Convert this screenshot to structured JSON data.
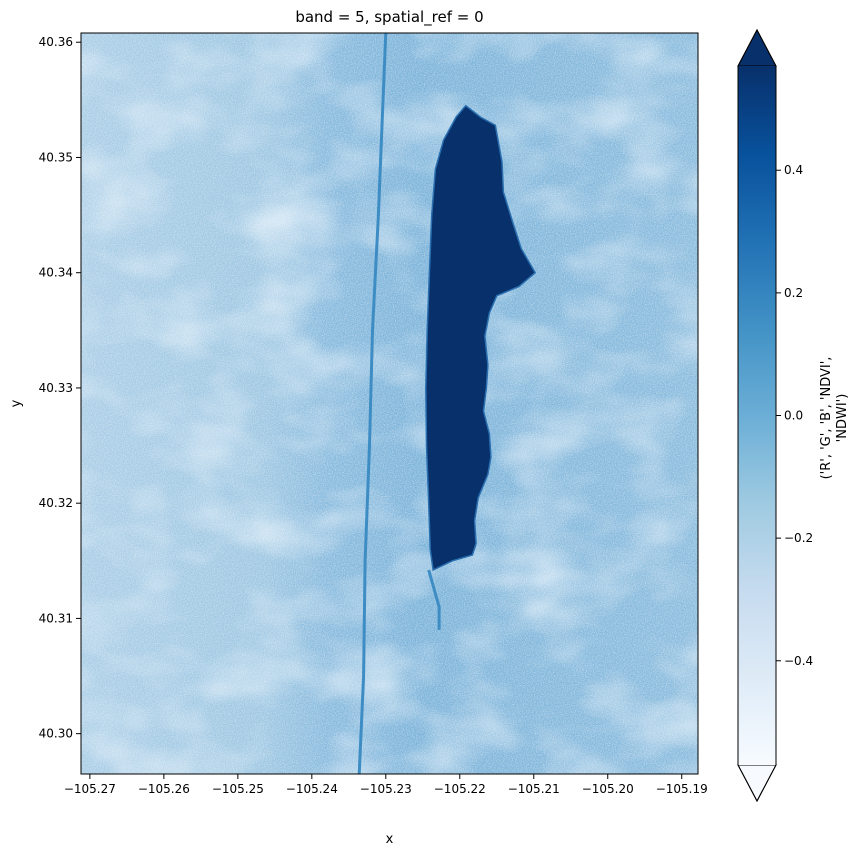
{
  "chart_data": {
    "type": "heatmap",
    "title": "band = 5, spatial_ref = 0",
    "xlabel": "x",
    "ylabel": "y",
    "xlim": [
      -105.2712,
      -105.1878
    ],
    "ylim": [
      40.2965,
      40.3608
    ],
    "x_ticks": [
      {
        "value": -105.27,
        "label": "−105.27"
      },
      {
        "value": -105.26,
        "label": "−105.26"
      },
      {
        "value": -105.25,
        "label": "−105.25"
      },
      {
        "value": -105.24,
        "label": "−105.24"
      },
      {
        "value": -105.23,
        "label": "−105.23"
      },
      {
        "value": -105.22,
        "label": "−105.22"
      },
      {
        "value": -105.21,
        "label": "−105.21"
      },
      {
        "value": -105.2,
        "label": "−105.20"
      },
      {
        "value": -105.19,
        "label": "−105.19"
      }
    ],
    "y_ticks": [
      {
        "value": 40.3,
        "label": "40.30"
      },
      {
        "value": 40.31,
        "label": "40.31"
      },
      {
        "value": 40.32,
        "label": "40.32"
      },
      {
        "value": 40.33,
        "label": "40.33"
      },
      {
        "value": 40.34,
        "label": "40.34"
      },
      {
        "value": 40.35,
        "label": "40.35"
      },
      {
        "value": 40.36,
        "label": "40.36"
      }
    ],
    "colorbar": {
      "label_line1": "('R', 'G', 'B', 'NDVI',",
      "label_line2": "'NDWI')",
      "vmin": -0.57,
      "vmax": 0.57,
      "extend": "both",
      "colormap": "Blues",
      "ticks": [
        {
          "value": -0.4,
          "label": "−0.4"
        },
        {
          "value": -0.2,
          "label": "−0.2"
        },
        {
          "value": 0.0,
          "label": "0.0"
        },
        {
          "value": 0.2,
          "label": "0.2"
        },
        {
          "value": 0.4,
          "label": "0.4"
        }
      ]
    },
    "colors": {
      "water": "#08306b",
      "land": "#6aaed6",
      "land_light": "#c6dbef",
      "stream": "#3d8dc4",
      "cmap_stops": [
        "#f7fbff",
        "#deebf7",
        "#c6dbef",
        "#9ecae1",
        "#6baed6",
        "#4292c6",
        "#2171b5",
        "#08519c",
        "#08306b"
      ]
    },
    "features": {
      "water_body_outline": [
        [
          -105.2192,
          40.3545
        ],
        [
          -105.2172,
          40.3535
        ],
        [
          -105.2152,
          40.3528
        ],
        [
          -105.2143,
          40.3496
        ],
        [
          -105.2141,
          40.347
        ],
        [
          -105.2128,
          40.3443
        ],
        [
          -105.2117,
          40.3421
        ],
        [
          -105.2098,
          40.34
        ],
        [
          -105.212,
          40.3388
        ],
        [
          -105.215,
          40.338
        ],
        [
          -105.216,
          40.3365
        ],
        [
          -105.2166,
          40.3345
        ],
        [
          -105.2162,
          40.332
        ],
        [
          -105.2164,
          40.33
        ],
        [
          -105.2168,
          40.328
        ],
        [
          -105.216,
          40.326
        ],
        [
          -105.2158,
          40.324
        ],
        [
          -105.2162,
          40.3225
        ],
        [
          -105.2175,
          40.3205
        ],
        [
          -105.218,
          40.3185
        ],
        [
          -105.2178,
          40.3165
        ],
        [
          -105.2183,
          40.3155
        ],
        [
          -105.221,
          40.315
        ],
        [
          -105.2236,
          40.3142
        ],
        [
          -105.224,
          40.316
        ],
        [
          -105.2242,
          40.32
        ],
        [
          -105.2245,
          40.325
        ],
        [
          -105.2246,
          40.33
        ],
        [
          -105.2244,
          40.335
        ],
        [
          -105.2241,
          40.34
        ],
        [
          -105.2238,
          40.345
        ],
        [
          -105.2233,
          40.349
        ],
        [
          -105.2222,
          40.3515
        ],
        [
          -105.2205,
          40.3535
        ]
      ],
      "stream_lines": [
        [
          [
            -105.2336,
            40.2965
          ],
          [
            -105.233,
            40.305
          ],
          [
            -105.2328,
            40.315
          ],
          [
            -105.2322,
            40.325
          ],
          [
            -105.2318,
            40.335
          ],
          [
            -105.231,
            40.345
          ],
          [
            -105.2305,
            40.353
          ],
          [
            -105.23,
            40.3608
          ]
        ],
        [
          [
            -105.2242,
            40.3142
          ],
          [
            -105.2228,
            40.311
          ],
          [
            -105.2228,
            40.309
          ]
        ]
      ]
    }
  }
}
